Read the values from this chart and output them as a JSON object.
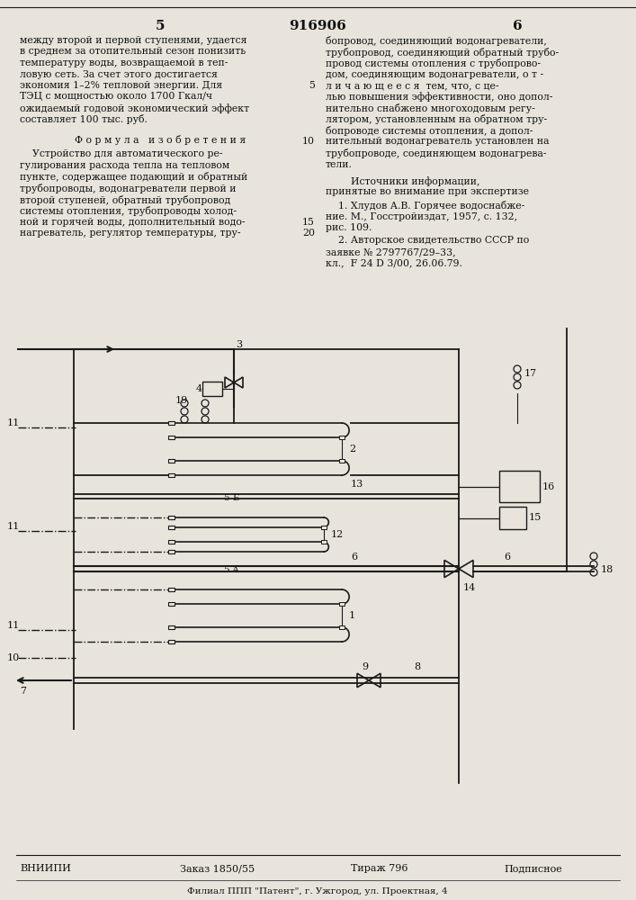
{
  "page_number_left": "5",
  "patent_number": "916906",
  "page_number_right": "6",
  "bg_color": "#e8e4dc",
  "text_color": "#111111",
  "line_color": "#1a1a1a",
  "col1_lines": [
    "между второй и первой ступенями, удается",
    "в среднем за отопительный сезон понизить",
    "температуру воды, возвращаемой в теп-",
    "ловую сеть. За счет этого достигается",
    "экономия 1–2% тепловой энергии. Для",
    "ТЭЦ с мощностью около 1700 Гкал/ч",
    "ожидаемый годовой экономический эффект",
    "составляет 100 тыс. руб."
  ],
  "formula_header": "Ф о р м у л а   и з о б р е т е н и я",
  "formula_lines": [
    "    Устройство для автоматического ре-",
    "гулирования расхода тепла на тепловом",
    "пункте, содержащее подающий и обратный",
    "трубопроводы, водонагреватели первой и",
    "второй ступеней, обратный трубопровод",
    "системы отопления, трубопроводы холод-",
    "ной и горячей воды, дополнительный водо-",
    "нагреватель, регулятор температуры, тру-"
  ],
  "col2_lines": [
    "бопровод, соединяющий водонагреватели,",
    "трубопровод, соединяющий обратный трубо-",
    "провод системы отопления с трубопрово-",
    "дом, соединяющим водонагреватели, о т -",
    "л и ч а ю щ е е с я  тем, что, с це-",
    "лью повышения эффективности, оно допол-",
    "нительно снабжено многоходовым регу-",
    "лятором, установленным на обратном тру-",
    "бопроводе системы отопления, а допол-",
    "нительный водонагреватель установлен на",
    "трубопроводе, соединяющем водонагрева-",
    "тели."
  ],
  "sources_header": "        Источники информации,",
  "sources_sub": "принятые во внимание при экспертизе",
  "src1a": "    1. Хлудов А.В. Горячее водоснабже-",
  "src1b": "ние. М., Госстройиздат, 1957, с. 132,",
  "src1c": "рис. 109.",
  "src2a": "    2. Авторское свидетельство СССР по",
  "src2b": "заявке № 2797767/29–33,",
  "src2c": "кл.,  F 24 D 3/00, 26.06.79.",
  "vniippi": "ВНИИПИ",
  "zakaz": "Заказ 1850/55",
  "tirazh": "Тираж 796",
  "podpisnoe": "Подписное",
  "filial": "Филиал ППП \"Патент\", г. Ужгород, ул. Проектная, 4"
}
